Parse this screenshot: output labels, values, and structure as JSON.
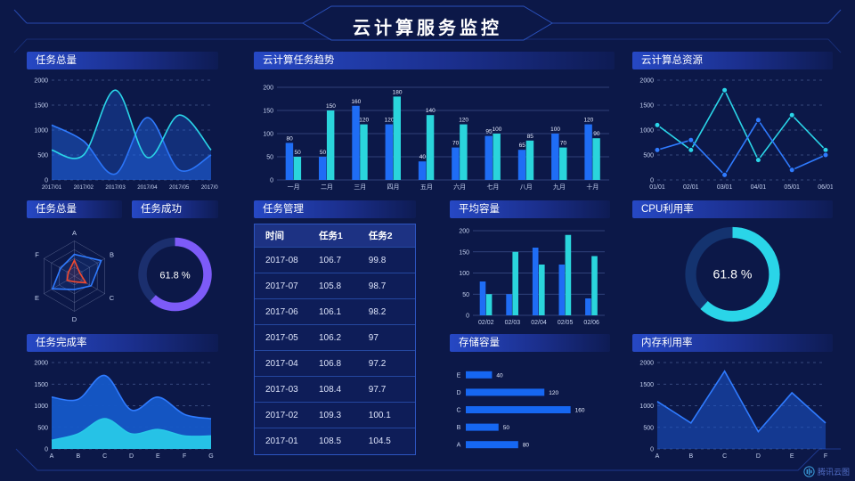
{
  "page": {
    "title": "云计算服务监控",
    "brand": "腾讯云图"
  },
  "colors": {
    "background": "#0c1848",
    "accent_blue": "#1f6df5",
    "accent_cyan": "#2ad5dc",
    "accent_purple": "#7d5bf8",
    "accent_orange": "#f1492f",
    "frame_line": "#2e56c8"
  },
  "panels": {
    "taskTotalLine": {
      "title": "任务总量"
    },
    "taskTrend": {
      "title": "云计算任务趋势"
    },
    "cloudResource": {
      "title": "云计算总资源"
    },
    "taskRadar": {
      "title": "任务总量"
    },
    "taskSuccess": {
      "title": "任务成功"
    },
    "taskTable": {
      "title": "任务管理"
    },
    "avgCapacity": {
      "title": "平均容量"
    },
    "cpuUsage": {
      "title": "CPU利用率"
    },
    "taskCompletion": {
      "title": "任务完成率"
    },
    "storage": {
      "title": "存储容量"
    },
    "memUsage": {
      "title": "内存利用率"
    }
  },
  "table": {
    "headers": [
      "时间",
      "任务1",
      "任务2"
    ],
    "rows": [
      [
        "2017-08",
        "106.7",
        "99.8"
      ],
      [
        "2017-07",
        "105.8",
        "98.7"
      ],
      [
        "2017-06",
        "106.1",
        "98.2"
      ],
      [
        "2017-05",
        "106.2",
        "97"
      ],
      [
        "2017-04",
        "106.8",
        "97.2"
      ],
      [
        "2017-03",
        "108.4",
        "97.7"
      ],
      [
        "2017-02",
        "109.3",
        "100.1"
      ],
      [
        "2017-01",
        "108.5",
        "104.5"
      ]
    ]
  },
  "chart_data": [
    {
      "id": "taskTotalLine",
      "type": "line",
      "title": "任务总量",
      "smooth": true,
      "markers": false,
      "grid": "dashed",
      "xfont": 6.2,
      "categories": [
        "2017/01",
        "2017/02",
        "2017/03",
        "2017/04",
        "2017/05",
        "2017/06"
      ],
      "series": [
        {
          "name": "series-blue",
          "color": "#2f7bff",
          "fill": "rgba(34,104,234,0.45)",
          "values": [
            1100,
            780,
            120,
            1250,
            200,
            500
          ]
        },
        {
          "name": "series-cyan",
          "color": "#2ad5e8",
          "fill": "rgba(34,104,234,0.30)",
          "values": [
            600,
            500,
            1800,
            450,
            1300,
            600
          ]
        }
      ],
      "ylim": [
        0,
        2000
      ],
      "yticks": [
        0,
        500,
        1000,
        1500,
        2000
      ]
    },
    {
      "id": "taskTrend",
      "type": "bar",
      "title": "云计算任务趋势",
      "labels": true,
      "grid": "solid",
      "categories": [
        "一月",
        "二月",
        "三月",
        "四月",
        "五月",
        "六月",
        "七月",
        "八月",
        "九月",
        "十月"
      ],
      "series": [
        {
          "name": "series-blue",
          "color": "#1f6df5",
          "values": [
            80,
            50,
            160,
            120,
            40,
            70,
            95,
            65,
            100,
            120
          ]
        },
        {
          "name": "series-cyan",
          "color": "#2ad5dc",
          "values": [
            50,
            150,
            120,
            180,
            140,
            120,
            100,
            85,
            70,
            90
          ]
        }
      ],
      "ylim": [
        0,
        200
      ],
      "yticks": [
        0,
        50,
        100,
        150,
        200
      ]
    },
    {
      "id": "cloudResource",
      "type": "line",
      "title": "云计算总资源",
      "smooth": false,
      "markers": true,
      "grid": "dashed",
      "xfont": 7,
      "categories": [
        "01/01",
        "02/01",
        "03/01",
        "04/01",
        "05/01",
        "06/01"
      ],
      "series": [
        {
          "name": "series-cyan",
          "color": "#2ad5e8",
          "values": [
            1100,
            600,
            1800,
            400,
            1300,
            600
          ]
        },
        {
          "name": "series-blue",
          "color": "#2f7bff",
          "values": [
            600,
            800,
            100,
            1200,
            200,
            500
          ]
        }
      ],
      "ylim": [
        0,
        2000
      ],
      "yticks": [
        0,
        500,
        1000,
        1500,
        2000
      ]
    },
    {
      "id": "taskRadar",
      "type": "radar",
      "title": "任务总量",
      "axes": [
        "A",
        "B",
        "C",
        "D",
        "E",
        "F"
      ],
      "max": 100,
      "series": [
        {
          "name": "series-blue",
          "color": "#2f7bff",
          "values": [
            62,
            88,
            55,
            38,
            72,
            45
          ]
        },
        {
          "name": "series-orange",
          "color": "#f1492f",
          "values": [
            45,
            18,
            38,
            16,
            24,
            20
          ]
        }
      ]
    },
    {
      "id": "taskSuccess",
      "type": "donut",
      "title": "任务成功",
      "value": 61.8,
      "label": "61.8 %",
      "color": "#7d5bf8",
      "track": "#1b2f6e"
    },
    {
      "id": "avgCapacity",
      "type": "bar",
      "title": "平均容量",
      "labels": false,
      "grid": "solid",
      "categories": [
        "02/02",
        "02/03",
        "02/04",
        "02/05",
        "02/06"
      ],
      "series": [
        {
          "name": "series-blue",
          "color": "#1f6df5",
          "values": [
            80,
            50,
            160,
            120,
            40
          ]
        },
        {
          "name": "series-cyan",
          "color": "#2ad5dc",
          "values": [
            50,
            150,
            120,
            190,
            140
          ]
        }
      ],
      "ylim": [
        0,
        200
      ],
      "yticks": [
        0,
        50,
        100,
        150,
        200
      ]
    },
    {
      "id": "cpuUsage",
      "type": "donut",
      "title": "CPU利用率",
      "value": 61.8,
      "label": "61.8 %",
      "color": "#2ad5e8",
      "track": "#14336f"
    },
    {
      "id": "taskCompletion",
      "type": "line",
      "title": "任务完成率",
      "smooth": true,
      "markers": false,
      "grid": "dashed",
      "xfont": 7,
      "categories": [
        "A",
        "B",
        "C",
        "D",
        "E",
        "F",
        "G"
      ],
      "series": [
        {
          "name": "series-blue",
          "color": "#2f7bff",
          "fill": "rgba(21,88,201,0.95)",
          "values": [
            1200,
            1150,
            1700,
            900,
            1200,
            800,
            700
          ]
        },
        {
          "name": "series-cyan",
          "color": "#27c8e8",
          "fill": "rgba(39,200,232,0.95)",
          "values": [
            200,
            350,
            700,
            350,
            450,
            300,
            300
          ]
        }
      ],
      "ylim": [
        0,
        2000
      ],
      "yticks": [
        0,
        500,
        1000,
        1500,
        2000
      ]
    },
    {
      "id": "storage",
      "type": "hbar",
      "title": "存储容量",
      "categories": [
        "E",
        "D",
        "C",
        "B",
        "A"
      ],
      "values": [
        40,
        120,
        160,
        50,
        80
      ],
      "color": "#1667f2",
      "xmax": 170
    },
    {
      "id": "memUsage",
      "type": "line",
      "title": "内存利用率",
      "smooth": false,
      "markers": false,
      "grid": "dashed",
      "xfont": 7,
      "categories": [
        "A",
        "B",
        "C",
        "D",
        "E",
        "F"
      ],
      "series": [
        {
          "name": "series-blue",
          "color": "#2f7bff",
          "fill": "rgba(27,86,205,0.55)",
          "values": [
            1100,
            600,
            1800,
            400,
            1300,
            600
          ]
        }
      ],
      "ylim": [
        0,
        2000
      ],
      "yticks": [
        0,
        500,
        1000,
        1500,
        2000
      ]
    }
  ]
}
